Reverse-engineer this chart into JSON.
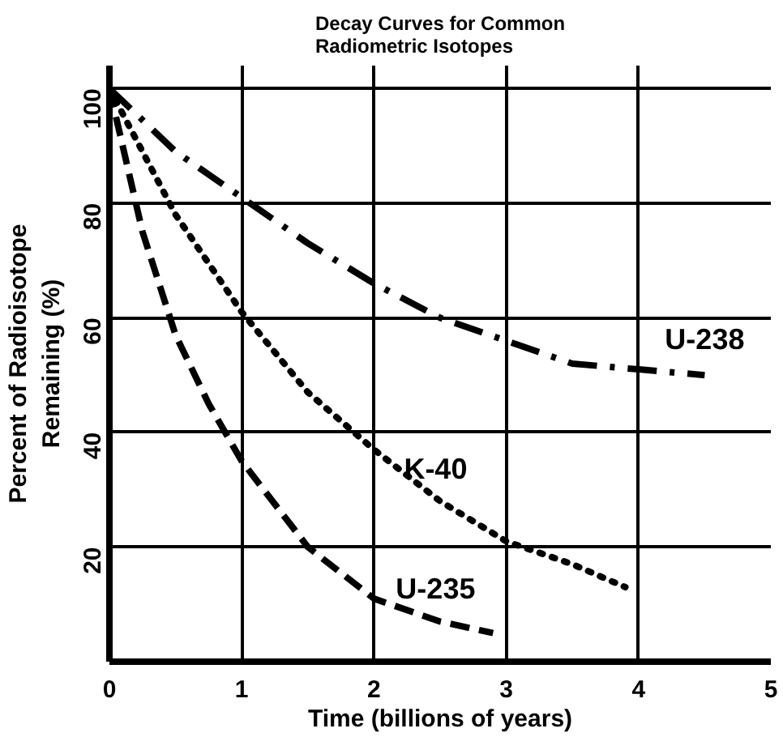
{
  "chart_data": {
    "type": "line",
    "title": "Decay Curves for Common\nRadiometric Isotopes",
    "xlabel": "Time (billions of years)",
    "ylabel": "Percent of Radioisotope\nRemaining (%)",
    "x": [
      0,
      0.5,
      1,
      1.5,
      2,
      2.5,
      3,
      3.5,
      4,
      4.5
    ],
    "series": [
      {
        "name": "U-238",
        "color": "#000000",
        "line_style": "dashdot",
        "values": [
          100,
          89,
          81,
          73,
          66,
          60,
          56,
          52,
          51,
          50
        ]
      },
      {
        "name": "K-40",
        "color": "#000000",
        "line_style": "dotted",
        "x": [
          0,
          0.5,
          1,
          1.5,
          2,
          2.5,
          3,
          3.5,
          3.9
        ],
        "values": [
          100,
          78,
          61,
          47,
          37,
          28,
          21,
          17,
          13
        ]
      },
      {
        "name": "U-235",
        "color": "#000000",
        "line_style": "dashed",
        "x": [
          0,
          0.25,
          0.5,
          0.75,
          1,
          1.5,
          2,
          2.5,
          2.9
        ],
        "values": [
          100,
          75,
          57,
          45,
          35,
          20,
          11,
          7,
          5
        ]
      }
    ],
    "xlim": [
      0,
      5
    ],
    "ylim": [
      0,
      104
    ],
    "xticks": [
      0,
      1,
      2,
      3,
      4,
      5
    ],
    "yticks": [
      {
        "value": 0,
        "label": null
      },
      20,
      40,
      60,
      80,
      100
    ],
    "grid": true,
    "marker": "none"
  }
}
